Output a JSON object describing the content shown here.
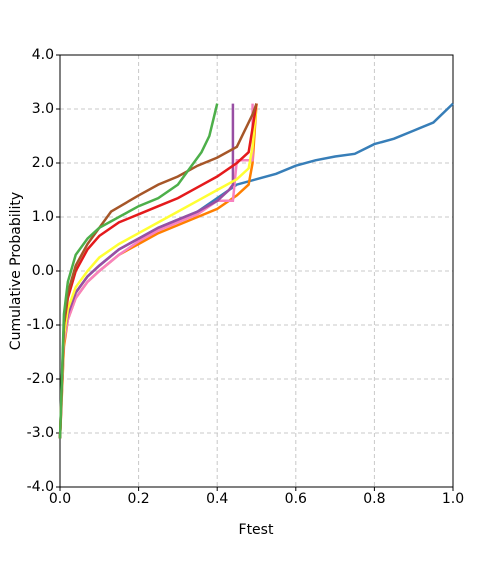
{
  "chart_data": {
    "type": "line",
    "xlabel": "Ftest",
    "ylabel": "Cumulative Probability",
    "xlim": [
      0,
      1
    ],
    "ylim": [
      -4,
      4
    ],
    "grid": true,
    "xticks": [
      {
        "value": 0,
        "label": "0.0"
      },
      {
        "value": 0.2,
        "label": "0.2"
      },
      {
        "value": 0.4,
        "label": "0.4"
      },
      {
        "value": 0.6,
        "label": "0.6"
      },
      {
        "value": 0.8,
        "label": "0.8"
      },
      {
        "value": 1,
        "label": "1.0"
      }
    ],
    "yticks": [
      {
        "value": -4,
        "label": "-4.0"
      },
      {
        "value": -3,
        "label": "-3.0"
      },
      {
        "value": -2,
        "label": "-2.0"
      },
      {
        "value": -1,
        "label": "-1.0"
      },
      {
        "value": 0,
        "label": "0.0"
      },
      {
        "value": 1,
        "label": "1.0"
      },
      {
        "value": 2,
        "label": "2.0"
      },
      {
        "value": 3,
        "label": "3.0"
      },
      {
        "value": 4,
        "label": "4.0"
      }
    ],
    "series": [
      {
        "color": "#377eb8",
        "x": [
          0,
          0.005,
          0.01,
          0.02,
          0.04,
          0.07,
          0.1,
          0.15,
          0.2,
          0.25,
          0.3,
          0.35,
          0.4,
          0.45,
          0.5,
          0.55,
          0.6,
          0.65,
          0.7,
          0.75,
          0.8,
          0.85,
          0.9,
          0.95,
          1.0
        ],
        "values": [
          -3.1,
          -2.0,
          -1.3,
          -0.8,
          -0.4,
          -0.1,
          0.1,
          0.4,
          0.6,
          0.8,
          0.95,
          1.1,
          1.35,
          1.6,
          1.7,
          1.8,
          1.95,
          2.05,
          2.12,
          2.17,
          2.35,
          2.45,
          2.6,
          2.75,
          3.1
        ]
      },
      {
        "color": "#ff7f00",
        "x": [
          0,
          0.01,
          0.02,
          0.04,
          0.07,
          0.1,
          0.15,
          0.2,
          0.25,
          0.3,
          0.35,
          0.4,
          0.45,
          0.48,
          0.49,
          0.5
        ],
        "values": [
          -3.1,
          -1.4,
          -0.9,
          -0.5,
          -0.2,
          0.0,
          0.3,
          0.5,
          0.7,
          0.85,
          1.0,
          1.15,
          1.4,
          1.6,
          2.0,
          3.1
        ]
      },
      {
        "color": "#f781bf",
        "x": [
          0,
          0.01,
          0.02,
          0.04,
          0.07,
          0.1,
          0.15,
          0.2,
          0.25,
          0.3,
          0.35,
          0.4,
          0.44,
          0.45,
          0.49,
          0.49
        ],
        "values": [
          -3.1,
          -1.3,
          -0.9,
          -0.5,
          -0.2,
          0.0,
          0.3,
          0.55,
          0.75,
          0.9,
          1.05,
          1.3,
          1.3,
          2.05,
          2.05,
          3.1
        ]
      },
      {
        "color": "#984ea3",
        "x": [
          0,
          0.01,
          0.02,
          0.04,
          0.07,
          0.1,
          0.15,
          0.2,
          0.25,
          0.3,
          0.35,
          0.4,
          0.43,
          0.44,
          0.44
        ],
        "values": [
          -3.1,
          -1.2,
          -0.8,
          -0.4,
          -0.1,
          0.1,
          0.4,
          0.6,
          0.8,
          0.95,
          1.1,
          1.3,
          1.5,
          1.6,
          3.1
        ]
      },
      {
        "color": "#ffff33",
        "x": [
          0,
          0.01,
          0.02,
          0.04,
          0.07,
          0.1,
          0.15,
          0.2,
          0.25,
          0.3,
          0.35,
          0.4,
          0.45,
          0.48,
          0.49,
          0.5
        ],
        "values": [
          -3.1,
          -1.2,
          -0.7,
          -0.3,
          0.0,
          0.25,
          0.5,
          0.7,
          0.9,
          1.1,
          1.3,
          1.5,
          1.7,
          1.9,
          2.3,
          3.1
        ]
      },
      {
        "color": "#e41a1c",
        "x": [
          0,
          0.01,
          0.02,
          0.04,
          0.07,
          0.1,
          0.15,
          0.2,
          0.25,
          0.3,
          0.35,
          0.4,
          0.45,
          0.48,
          0.5
        ],
        "values": [
          -3.1,
          -1.0,
          -0.5,
          0.0,
          0.4,
          0.65,
          0.9,
          1.05,
          1.2,
          1.35,
          1.55,
          1.75,
          2.0,
          2.2,
          3.1
        ]
      },
      {
        "color": "#a65628",
        "x": [
          0,
          0.01,
          0.02,
          0.04,
          0.07,
          0.1,
          0.13,
          0.2,
          0.25,
          0.3,
          0.35,
          0.4,
          0.45,
          0.47,
          0.49,
          0.5
        ],
        "values": [
          -3.1,
          -1.0,
          -0.4,
          0.1,
          0.5,
          0.8,
          1.1,
          1.4,
          1.6,
          1.75,
          1.95,
          2.1,
          2.3,
          2.6,
          2.9,
          3.1
        ]
      },
      {
        "color": "#4daf4a",
        "x": [
          0,
          0.01,
          0.02,
          0.04,
          0.07,
          0.1,
          0.15,
          0.2,
          0.25,
          0.3,
          0.33,
          0.36,
          0.38,
          0.39,
          0.4
        ],
        "values": [
          -3.1,
          -0.8,
          -0.2,
          0.3,
          0.6,
          0.8,
          1.0,
          1.2,
          1.35,
          1.6,
          1.9,
          2.2,
          2.5,
          2.8,
          3.1
        ]
      }
    ]
  }
}
